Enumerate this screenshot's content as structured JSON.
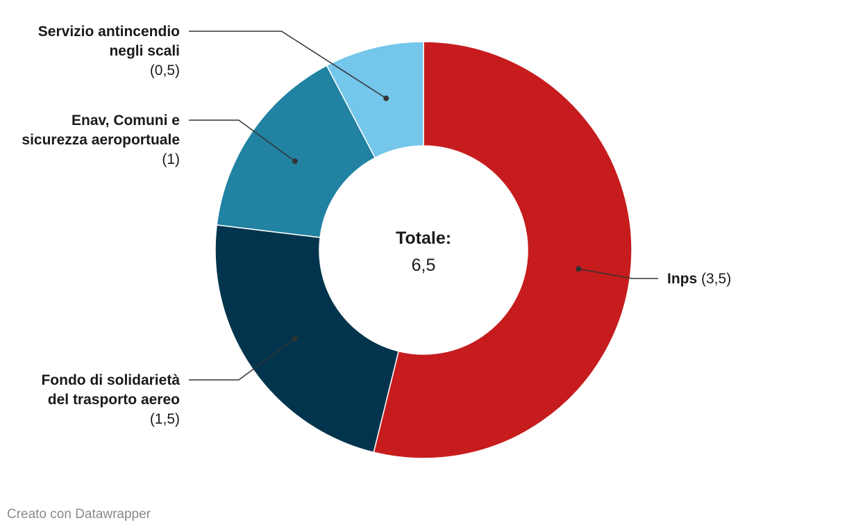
{
  "chart_data": {
    "type": "pie",
    "donut": true,
    "categories": [
      "Inps",
      "Fondo di solidarietà del trasporto aereo",
      "Enav, Comuni e sicurezza aeroportuale",
      "Servizio antincendio negli scali"
    ],
    "values": [
      3.5,
      1.5,
      1,
      0.5
    ],
    "colors": [
      "#c61c1e",
      "#02354d",
      "#2182a2",
      "#74c6ea"
    ],
    "labels": [
      {
        "lines": [
          "Inps"
        ],
        "value_text": "(3,5)"
      },
      {
        "lines": [
          "Fondo di solidarietà",
          "del trasporto aereo"
        ],
        "value_text": "(1,5)"
      },
      {
        "lines": [
          "Enav, Comuni e",
          "sicurezza aeroportuale"
        ],
        "value_text": "(1)"
      },
      {
        "lines": [
          "Servizio antincendio",
          "negli scali"
        ],
        "value_text": "(0,5)"
      }
    ],
    "center": {
      "title": "Totale:",
      "value": "6,5"
    }
  },
  "footer": {
    "credit": "Creato con Datawrapper"
  }
}
